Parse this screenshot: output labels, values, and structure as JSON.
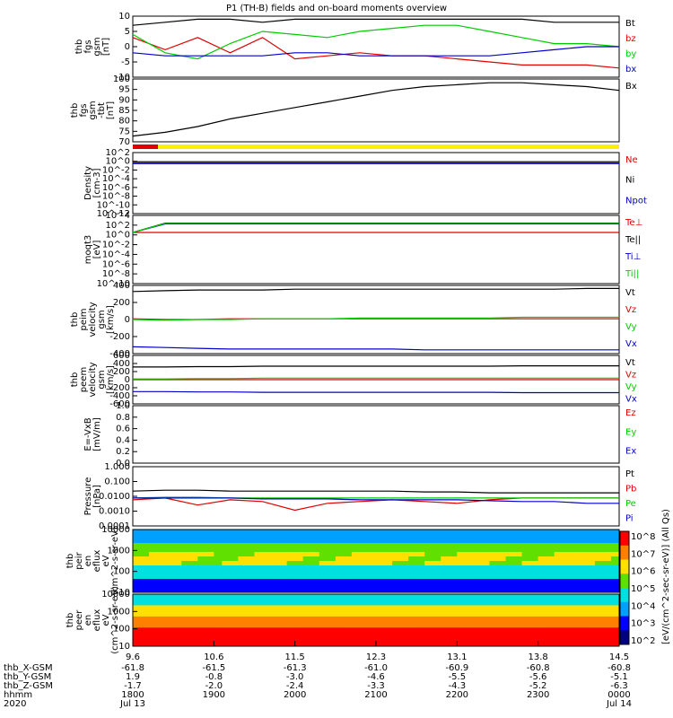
{
  "title": "P1 (TH-B) fields and on-board moments overview",
  "colors": {
    "black": "#000000",
    "red": "#e00000",
    "green": "#00cc00",
    "blue": "#0000cc",
    "yellow": "#ffee00"
  },
  "x_axis": {
    "ticks": [
      "9.6",
      "10.6",
      "11.5",
      "12.3",
      "13.1",
      "13.8",
      "14.5"
    ],
    "rows": [
      {
        "label": "thb_X-GSM",
        "values": [
          "-61.8",
          "-61.5",
          "-61.3",
          "-61.0",
          "-60.9",
          "-60.8",
          "-60.8"
        ]
      },
      {
        "label": "thb_Y-GSM",
        "values": [
          "1.9",
          "-0.8",
          "-3.0",
          "-4.6",
          "-5.5",
          "-5.6",
          "-5.1"
        ]
      },
      {
        "label": "thb_Z-GSM",
        "values": [
          "-1.7",
          "-2.0",
          "-2.4",
          "-3.3",
          "-4.3",
          "-5.2",
          "-6.3"
        ]
      },
      {
        "label": "hhmm",
        "values": [
          "1800",
          "1900",
          "2000",
          "2100",
          "2200",
          "2300",
          "0000"
        ]
      },
      {
        "label": "2020",
        "values": [
          "Jul 13",
          "",
          "",
          "",
          "",
          "",
          "Jul 14"
        ]
      }
    ]
  },
  "colorbar": {
    "label": "[eV/(cm^2-sec-sr-eV)] (All Qs)",
    "ticks": [
      "10^8",
      "10^7",
      "10^6",
      "10^5",
      "10^4",
      "10^3",
      "10^2"
    ]
  },
  "chart_data": [
    {
      "type": "line",
      "ylabel": "thb fgs gsm [nT]",
      "ylim": [
        -10,
        10
      ],
      "ticks": [
        "10",
        "5",
        "0",
        "-5",
        "-10"
      ],
      "legend": [
        "Bt",
        "bz",
        "by",
        "bx"
      ],
      "series": [
        {
          "name": "Bt",
          "color": "#000000",
          "values": [
            7,
            8,
            9,
            9,
            8,
            9,
            9,
            9,
            9,
            9,
            9,
            9,
            9,
            8,
            8,
            8
          ]
        },
        {
          "name": "bz",
          "color": "#e00000",
          "values": [
            3,
            -1,
            3,
            -2,
            3,
            -4,
            -3,
            -2,
            -3,
            -3,
            -4,
            -5,
            -6,
            -6,
            -6,
            -7
          ]
        },
        {
          "name": "by",
          "color": "#00cc00",
          "values": [
            4,
            -2,
            -4,
            1,
            5,
            4,
            3,
            5,
            6,
            7,
            7,
            5,
            3,
            1,
            1,
            0
          ]
        },
        {
          "name": "bx",
          "color": "#0000cc",
          "values": [
            -2,
            -3,
            -3,
            -3,
            -3,
            -2,
            -2,
            -3,
            -3,
            -3,
            -3,
            -3,
            -2,
            -1,
            0,
            0
          ]
        }
      ]
    },
    {
      "type": "line",
      "ylabel": "thb fgs gsm -tbt [nT]",
      "ylim": [
        67,
        100
      ],
      "ticks": [
        "100",
        "95",
        "90",
        "85",
        "80",
        "75",
        "70"
      ],
      "legend": [
        "Bx"
      ],
      "series": [
        {
          "name": "Bx",
          "color": "#000000",
          "values": [
            70,
            72,
            75,
            79,
            82,
            85,
            88,
            91,
            94,
            96,
            97,
            98,
            98,
            97,
            96,
            94
          ]
        }
      ]
    },
    {
      "type": "line",
      "ylabel": "Density [cm-3]",
      "ylim": [
        -13,
        3
      ],
      "ticks": [
        "10^2",
        "10^0",
        "10^-2",
        "10^-4",
        "10^-6",
        "10^-8",
        "10^-10",
        "10^-12"
      ],
      "legend": [
        "Ne",
        "Ni",
        "Npot"
      ],
      "series": [
        {
          "name": "Ne",
          "color": "#e00000",
          "values": [
            0.3,
            0.3,
            0.3,
            0.3,
            0.3,
            0.3,
            0.3,
            0.3,
            0.3,
            0.3,
            0.3,
            0.3,
            0.3,
            0.3,
            0.3,
            0.3
          ]
        },
        {
          "name": "Ni",
          "color": "#000000",
          "values": [
            0.6,
            0.6,
            0.6,
            0.6,
            0.6,
            0.6,
            0.6,
            0.6,
            0.6,
            0.6,
            0.6,
            0.6,
            0.6,
            0.6,
            0.6,
            0.6
          ]
        },
        {
          "name": "Npot",
          "color": "#0000cc",
          "values": [
            0.1,
            0.1,
            0.1,
            0.1,
            0.1,
            0.1,
            0.1,
            0.1,
            0.1,
            0.1,
            0.1,
            0.1,
            0.1,
            0.1,
            0.1,
            0.1
          ]
        }
      ]
    },
    {
      "type": "line",
      "ylabel": "moqt3 [eV]",
      "ylim": [
        -11,
        5
      ],
      "ticks": [
        "10^4",
        "10^2",
        "10^0",
        "10^-2",
        "10^-4",
        "10^-6",
        "10^-8",
        "10^-10"
      ],
      "legend": [
        "Te⊥",
        "Te||",
        "Ti⊥",
        "Ti||"
      ],
      "series": [
        {
          "name": "Te⊥",
          "color": "#e00000",
          "values": [
            1,
            1,
            1,
            1,
            1,
            1,
            1,
            1,
            1,
            1,
            1,
            1,
            1,
            1,
            1,
            1
          ]
        },
        {
          "name": "Te||",
          "color": "#000000",
          "values": [
            1,
            3.2,
            3.2,
            3.2,
            3.2,
            3.2,
            3.2,
            3.2,
            3.2,
            3.2,
            3.2,
            3.2,
            3.2,
            3.2,
            3.2,
            3.2
          ]
        },
        {
          "name": "Ti⊥",
          "color": "#0000cc",
          "values": [
            1,
            3,
            3,
            3,
            3,
            3,
            3,
            3,
            3,
            3,
            3,
            3,
            3,
            3,
            3,
            3
          ]
        },
        {
          "name": "Ti||",
          "color": "#00cc00",
          "values": [
            1,
            3.1,
            3.1,
            3.1,
            3.1,
            3.1,
            3.1,
            3.1,
            3.1,
            3.1,
            3.1,
            3.1,
            3.1,
            3.1,
            3.1,
            3.1
          ]
        }
      ]
    },
    {
      "type": "line",
      "ylabel": "thb peim velocity gsm [km/s]",
      "ylim": [
        -450,
        450
      ],
      "ticks": [
        "400",
        "200",
        "0",
        "-200",
        "-400"
      ],
      "legend": [
        "Vt",
        "Vz",
        "Vy",
        "Vx"
      ],
      "series": [
        {
          "name": "Vt",
          "color": "#000000",
          "values": [
            370,
            380,
            390,
            390,
            390,
            400,
            400,
            400,
            400,
            400,
            400,
            400,
            400,
            400,
            410,
            410
          ]
        },
        {
          "name": "Vz",
          "color": "#e00000",
          "values": [
            10,
            0,
            0,
            10,
            10,
            10,
            10,
            10,
            10,
            10,
            10,
            10,
            10,
            10,
            10,
            10
          ]
        },
        {
          "name": "Vy",
          "color": "#00cc00",
          "values": [
            0,
            -10,
            0,
            0,
            10,
            10,
            10,
            20,
            20,
            20,
            20,
            20,
            30,
            30,
            30,
            30
          ]
        },
        {
          "name": "Vx",
          "color": "#0000cc",
          "values": [
            -360,
            -370,
            -380,
            -390,
            -390,
            -390,
            -390,
            -390,
            -390,
            -400,
            -400,
            -400,
            -400,
            -400,
            -400,
            -400
          ]
        }
      ]
    },
    {
      "type": "line",
      "ylabel": "thb peem velocity gsm [km/s]",
      "ylim": [
        -650,
        650
      ],
      "ticks": [
        "600",
        "400",
        "200",
        "0",
        "-200",
        "-400",
        "-600"
      ],
      "legend": [
        "Vt",
        "Vz",
        "Vy",
        "Vx"
      ],
      "series": [
        {
          "name": "Vt",
          "color": "#000000",
          "values": [
            340,
            340,
            350,
            350,
            360,
            360,
            360,
            360,
            360,
            360,
            360,
            360,
            370,
            370,
            370,
            370
          ]
        },
        {
          "name": "Vz",
          "color": "#e00000",
          "values": [
            0,
            0,
            0,
            0,
            0,
            0,
            0,
            0,
            0,
            0,
            0,
            0,
            0,
            0,
            0,
            0
          ]
        },
        {
          "name": "Vy",
          "color": "#00cc00",
          "values": [
            20,
            20,
            30,
            30,
            40,
            40,
            40,
            40,
            40,
            40,
            40,
            40,
            40,
            40,
            40,
            40
          ]
        },
        {
          "name": "Vx",
          "color": "#0000cc",
          "values": [
            -320,
            -320,
            -330,
            -330,
            -340,
            -340,
            -340,
            -340,
            -340,
            -340,
            -340,
            -340,
            -350,
            -350,
            -350,
            -350
          ]
        }
      ]
    },
    {
      "type": "line",
      "ylabel": "E=-VxB [mV/m]",
      "ylim": [
        0,
        1
      ],
      "ticks": [
        "1.0",
        "0.8",
        "0.6",
        "0.4",
        "0.2",
        "0.0"
      ],
      "legend": [
        "Ez",
        "Ey",
        "Ex"
      ],
      "series": []
    },
    {
      "type": "line",
      "ylabel": "Pressure [nPa]",
      "ylim": [
        -3.2,
        0.2
      ],
      "ticks": [
        "1.000",
        "0.100",
        "0.0100",
        "0.0010",
        "0.0001"
      ],
      "legend": [
        "Pt",
        "Pb",
        "Pe",
        "Pi"
      ],
      "series": [
        {
          "name": "Pt",
          "color": "#000000",
          "values": [
            -1.2,
            -1.15,
            -1.15,
            -1.2,
            -1.2,
            -1.2,
            -1.2,
            -1.2,
            -1.2,
            -1.25,
            -1.25,
            -1.3,
            -1.3,
            -1.3,
            -1.3,
            -1.3
          ]
        },
        {
          "name": "Pb",
          "color": "#e00000",
          "values": [
            -1.7,
            -1.6,
            -2.0,
            -1.7,
            -1.8,
            -2.3,
            -1.9,
            -1.8,
            -1.7,
            -1.8,
            -1.9,
            -1.7,
            -1.6,
            -1.6,
            -1.6,
            -1.6
          ]
        },
        {
          "name": "Pe",
          "color": "#00cc00",
          "values": [
            -1.6,
            -1.55,
            -1.55,
            -1.6,
            -1.6,
            -1.6,
            -1.6,
            -1.6,
            -1.6,
            -1.6,
            -1.6,
            -1.6,
            -1.6,
            -1.6,
            -1.6,
            -1.6
          ]
        },
        {
          "name": "Pi",
          "color": "#0000cc",
          "values": [
            -1.6,
            -1.6,
            -1.6,
            -1.6,
            -1.65,
            -1.65,
            -1.65,
            -1.7,
            -1.7,
            -1.7,
            -1.7,
            -1.75,
            -1.8,
            -1.8,
            -1.9,
            -1.9
          ]
        }
      ]
    },
    {
      "type": "heatmap",
      "ylabel": "thb peir en eflux eV (cm^2-s-sr-eV)",
      "ylim": [
        10,
        10000
      ],
      "ticks": [
        "10000",
        "1000",
        "100",
        "10"
      ]
    },
    {
      "type": "heatmap",
      "ylabel": "thb peer en eflux eV (cm^2-s-sr-eV)",
      "ylim": [
        5,
        10000
      ],
      "ticks": [
        "10000",
        "1000",
        "100",
        "10"
      ]
    }
  ]
}
